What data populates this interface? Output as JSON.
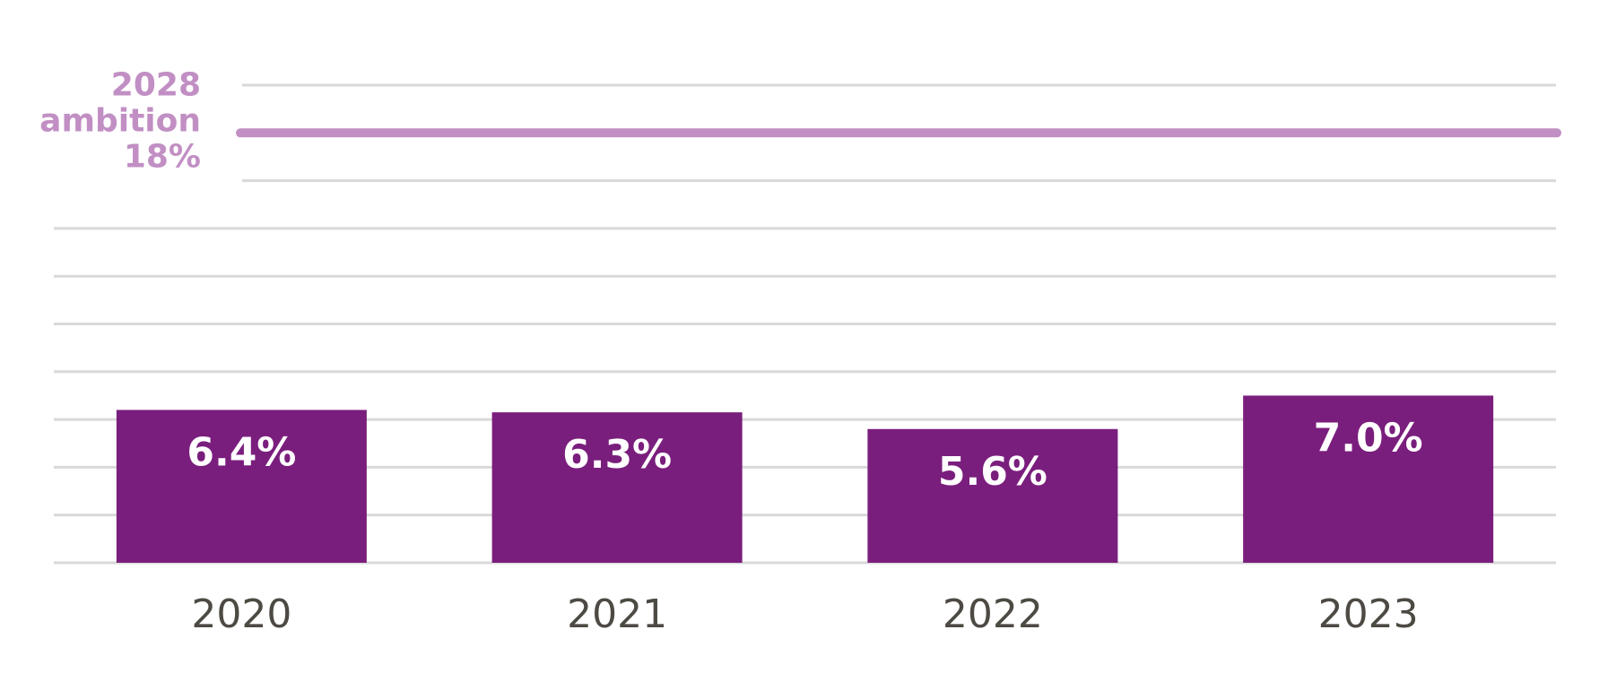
{
  "chart_data": {
    "type": "bar",
    "categories": [
      "2020",
      "2021",
      "2022",
      "2023"
    ],
    "values": [
      6.4,
      6.3,
      5.6,
      7.0
    ],
    "value_labels": [
      "6.4%",
      "6.3%",
      "5.6%",
      "7.0%"
    ],
    "title": "",
    "xlabel": "",
    "ylabel": "",
    "ylim": [
      0,
      20
    ],
    "grid": true,
    "legend": "none",
    "reference_line": {
      "value": 18,
      "label_lines": [
        "2028",
        "ambition",
        "18%"
      ]
    },
    "colors": {
      "bar": "#7a1e7d",
      "bar_label": "#ffffff",
      "reference": "#c18fc4",
      "gridline": "#d9d9d9",
      "tick_label": "#4d4a44"
    }
  }
}
